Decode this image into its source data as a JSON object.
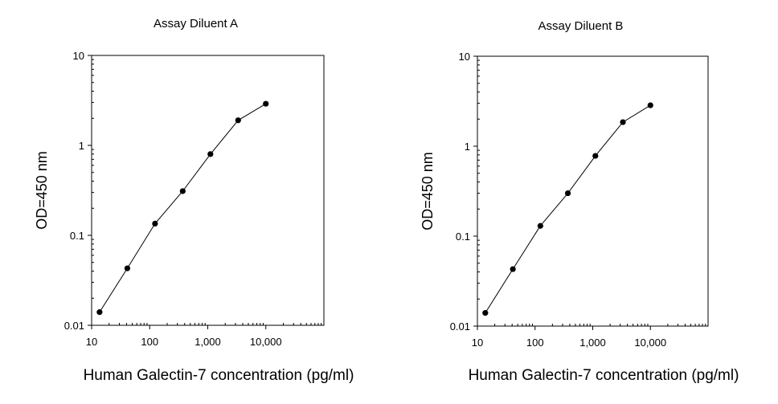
{
  "chart_data": [
    {
      "type": "line",
      "title": "Assay Diluent A",
      "xlabel": "Human Galectin-7 concentration (pg/ml)",
      "ylabel": "OD=450 nm",
      "xscale": "log",
      "yscale": "log",
      "xlim": [
        10,
        100000
      ],
      "ylim": [
        0.01,
        10
      ],
      "xticks": [
        10,
        100,
        1000,
        10000
      ],
      "xtick_labels": [
        "10",
        "100",
        "1,000",
        "10,000"
      ],
      "yticks": [
        0.01,
        0.1,
        1,
        10
      ],
      "ytick_labels": [
        "0.01",
        "0.1",
        "1",
        "10"
      ],
      "grid": false,
      "legend": "none",
      "series": [
        {
          "x": [
            13.7,
            41.2,
            123.5,
            370.4,
            1111,
            3333,
            10000
          ],
          "y": [
            0.014,
            0.043,
            0.135,
            0.31,
            0.8,
            1.9,
            2.9
          ]
        }
      ]
    },
    {
      "type": "line",
      "title": "Assay Diluent B",
      "xlabel": "Human Galectin-7 concentration (pg/ml)",
      "ylabel": "OD=450 nm",
      "xscale": "log",
      "yscale": "log",
      "xlim": [
        10,
        100000
      ],
      "ylim": [
        0.01,
        10
      ],
      "xticks": [
        10,
        100,
        1000,
        10000
      ],
      "xtick_labels": [
        "10",
        "100",
        "1,000",
        "10,000"
      ],
      "yticks": [
        0.01,
        0.1,
        1,
        10
      ],
      "ytick_labels": [
        "0.01",
        "0.1",
        "1",
        "10"
      ],
      "grid": false,
      "legend": "none",
      "series": [
        {
          "x": [
            13.7,
            41.2,
            123.5,
            370.4,
            1111,
            3333,
            10000
          ],
          "y": [
            0.014,
            0.043,
            0.13,
            0.3,
            0.78,
            1.85,
            2.85
          ]
        }
      ]
    }
  ]
}
